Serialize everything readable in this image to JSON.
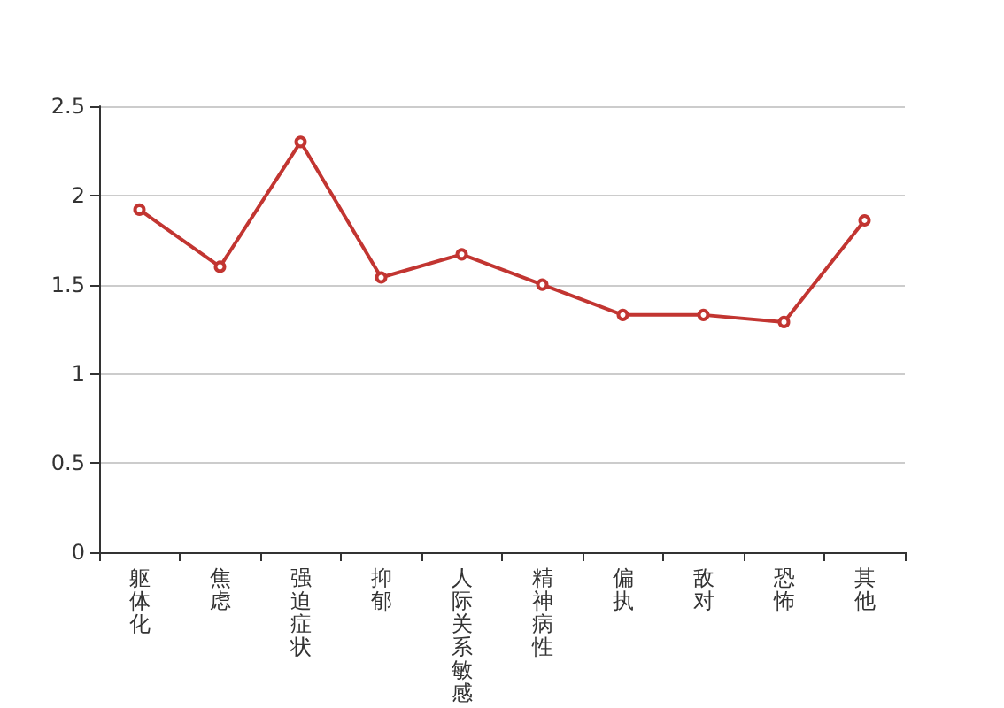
{
  "chart_data": {
    "type": "line",
    "categories": [
      "躯体化",
      "焦虑",
      "强迫症状",
      "抑郁",
      "人际关系敏感",
      "精神病性",
      "偏执",
      "敌对",
      "恐怖",
      "其他"
    ],
    "series": [
      {
        "color": "#c23531",
        "values": [
          1.92,
          1.6,
          2.3,
          1.54,
          1.67,
          1.5,
          1.33,
          1.33,
          1.29,
          1.86
        ]
      }
    ],
    "ylim": [
      0,
      2.5
    ],
    "yticks": [
      0,
      0.5,
      1,
      1.5,
      2,
      2.5
    ],
    "grid": "y",
    "marker": "circle",
    "line_style": "solid"
  }
}
